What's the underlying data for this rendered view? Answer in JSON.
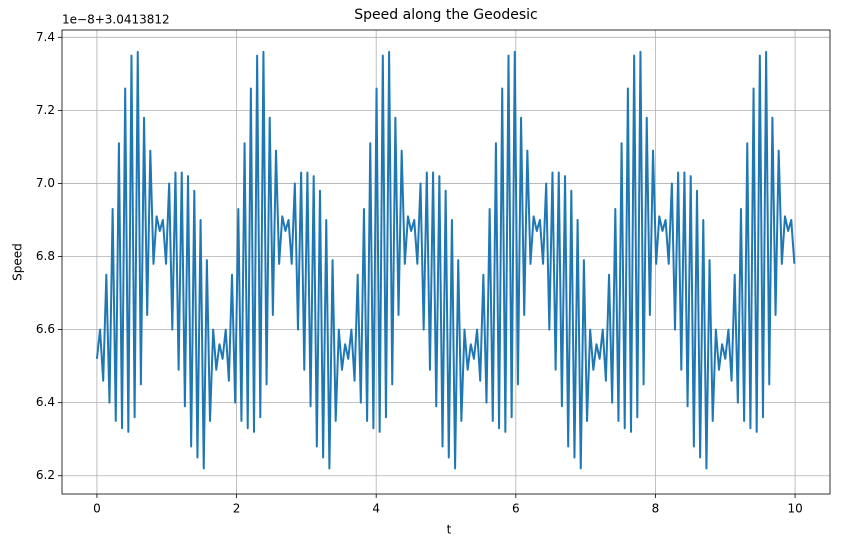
{
  "chart_data": {
    "type": "line",
    "title": "Speed along the Geodesic",
    "xlabel": "t",
    "ylabel": "Speed",
    "offset_text": "1e−8+3.0413812",
    "color": "#1f77b4",
    "grid": true,
    "xlim": [
      -0.5,
      10.5
    ],
    "xticks": [
      0,
      2,
      4,
      6,
      8,
      10
    ],
    "ylim": [
      6.15,
      7.42
    ],
    "yticks": [
      6.2,
      6.4,
      6.6,
      6.8,
      7.0,
      7.2,
      7.4
    ],
    "x": [
      0,
      0.045,
      0.09,
      0.135,
      0.18,
      0.225,
      0.27,
      0.315,
      0.36,
      0.405,
      0.45,
      0.495,
      0.54,
      0.585,
      0.63,
      0.675,
      0.72,
      0.765,
      0.81,
      0.855,
      0.9,
      0.945,
      0.99,
      1.035,
      1.08,
      1.125,
      1.17,
      1.215,
      1.26,
      1.305,
      1.35,
      1.395,
      1.44,
      1.485,
      1.53,
      1.575,
      1.62,
      1.665,
      1.71,
      1.755,
      1.8,
      1.845,
      1.89,
      1.935,
      1.98,
      2.025,
      2.07,
      2.115,
      2.16,
      2.205,
      2.25,
      2.295,
      2.34,
      2.385,
      2.43,
      2.475,
      2.52,
      2.565,
      2.61,
      2.655,
      2.7,
      2.745,
      2.79,
      2.835,
      2.88,
      2.925,
      2.97,
      3.015,
      3.06,
      3.105,
      3.15,
      3.195,
      3.24,
      3.285,
      3.33,
      3.375,
      3.42,
      3.465,
      3.51,
      3.555,
      3.6,
      3.645,
      3.69,
      3.735,
      3.78,
      3.825,
      3.87,
      3.915,
      3.96,
      4.005,
      4.05,
      4.095,
      4.14,
      4.185,
      4.23,
      4.275,
      4.32,
      4.365,
      4.41,
      4.455,
      4.5,
      4.545,
      4.59,
      4.635,
      4.68,
      4.725,
      4.77,
      4.815,
      4.86,
      4.905,
      4.95,
      4.995,
      5.04,
      5.085,
      5.13,
      5.175,
      5.22,
      5.265,
      5.31,
      5.355,
      5.4,
      5.445,
      5.49,
      5.535,
      5.58,
      5.625,
      5.67,
      5.715,
      5.76,
      5.805,
      5.85,
      5.895,
      5.94,
      5.985,
      6.03,
      6.075,
      6.12,
      6.165,
      6.21,
      6.255,
      6.3,
      6.345,
      6.39,
      6.435,
      6.48,
      6.525,
      6.57,
      6.615,
      6.66,
      6.705,
      6.75,
      6.795,
      6.84,
      6.885,
      6.93,
      6.975,
      7.02,
      7.065,
      7.11,
      7.155,
      7.2,
      7.245,
      7.29,
      7.335,
      7.38,
      7.425,
      7.47,
      7.515,
      7.56,
      7.605,
      7.65,
      7.695,
      7.74,
      7.785,
      7.83,
      7.875,
      7.92,
      7.965,
      8.01,
      8.055,
      8.1,
      8.145,
      8.19,
      8.235,
      8.28,
      8.325,
      8.37,
      8.415,
      8.46,
      8.505,
      8.55,
      8.595,
      8.64,
      8.685,
      8.73,
      8.775,
      8.82,
      8.865,
      8.91,
      8.955,
      9,
      9.045,
      9.09,
      9.135,
      9.18,
      9.225,
      9.27,
      9.315,
      9.36,
      9.405,
      9.45,
      9.495,
      9.54,
      9.585,
      9.63,
      9.675,
      9.72,
      9.765,
      9.81,
      9.855,
      9.9,
      9.945,
      9.99
    ],
    "values": [
      6.52,
      6.6,
      6.46,
      6.75,
      6.4,
      6.93,
      6.35,
      7.11,
      6.33,
      7.26,
      6.32,
      7.35,
      6.36,
      7.36,
      6.45,
      7.18,
      6.64,
      7.09,
      6.78,
      6.91,
      6.87,
      6.9,
      6.78,
      7.0,
      6.6,
      7.03,
      6.49,
      7.03,
      6.39,
      7.02,
      6.28,
      6.98,
      6.25,
      6.9,
      6.22,
      6.79,
      6.35,
      6.6,
      6.49,
      6.56,
      6.52,
      6.6,
      6.46,
      6.75,
      6.4,
      6.93,
      6.35,
      7.11,
      6.33,
      7.26,
      6.32,
      7.35,
      6.36,
      7.36,
      6.45,
      7.18,
      6.64,
      7.09,
      6.78,
      6.91,
      6.87,
      6.9,
      6.78,
      7.0,
      6.6,
      7.03,
      6.49,
      7.03,
      6.39,
      7.02,
      6.28,
      6.98,
      6.25,
      6.9,
      6.22,
      6.79,
      6.35,
      6.6,
      6.49,
      6.56,
      6.52,
      6.6,
      6.46,
      6.75,
      6.4,
      6.93,
      6.35,
      7.11,
      6.33,
      7.26,
      6.32,
      7.35,
      6.36,
      7.36,
      6.45,
      7.18,
      6.64,
      7.09,
      6.78,
      6.91,
      6.87,
      6.9,
      6.78,
      7.0,
      6.6,
      7.03,
      6.49,
      7.03,
      6.39,
      7.02,
      6.28,
      6.98,
      6.25,
      6.9,
      6.22,
      6.79,
      6.35,
      6.6,
      6.49,
      6.56,
      6.52,
      6.6,
      6.46,
      6.75,
      6.4,
      6.93,
      6.35,
      7.11,
      6.33,
      7.26,
      6.32,
      7.35,
      6.36,
      7.36,
      6.45,
      7.18,
      6.64,
      7.09,
      6.78,
      6.91,
      6.87,
      6.9,
      6.78,
      7.0,
      6.6,
      7.03,
      6.49,
      7.03,
      6.39,
      7.02,
      6.28,
      6.98,
      6.25,
      6.9,
      6.22,
      6.79,
      6.35,
      6.6,
      6.49,
      6.56,
      6.52,
      6.6,
      6.46,
      6.75,
      6.4,
      6.93,
      6.35,
      7.11,
      6.33,
      7.26,
      6.32,
      7.35,
      6.36,
      7.36,
      6.45,
      7.18,
      6.64,
      7.09,
      6.78,
      6.91,
      6.87,
      6.9,
      6.78,
      7.0,
      6.6,
      7.03,
      6.49,
      7.03,
      6.39,
      7.02,
      6.28,
      6.98,
      6.25,
      6.9,
      6.22,
      6.79,
      6.35,
      6.6,
      6.49,
      6.56,
      6.52,
      6.6,
      6.46,
      6.75,
      6.4,
      6.93,
      6.35,
      7.11,
      6.33,
      7.26,
      6.32,
      7.35,
      6.36,
      7.36,
      6.45,
      7.18,
      6.64,
      7.09,
      6.78,
      6.91,
      6.87,
      6.9,
      6.78
    ]
  }
}
